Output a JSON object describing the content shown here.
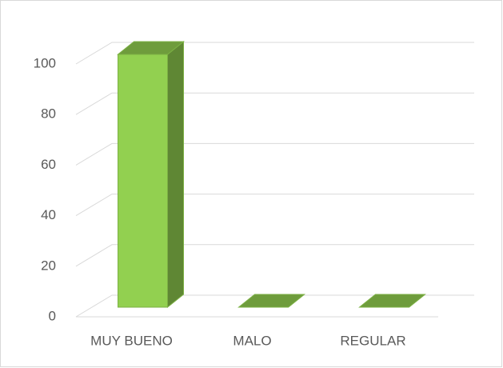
{
  "chart_data": {
    "type": "bar3d",
    "categories": [
      "MUY BUENO",
      "MALO",
      "REGULAR"
    ],
    "values": [
      100,
      0,
      0
    ],
    "color": "#92d050",
    "ylim": [
      0,
      100
    ],
    "yticks": [
      0,
      20,
      40,
      60,
      80,
      100
    ],
    "grid": true
  }
}
